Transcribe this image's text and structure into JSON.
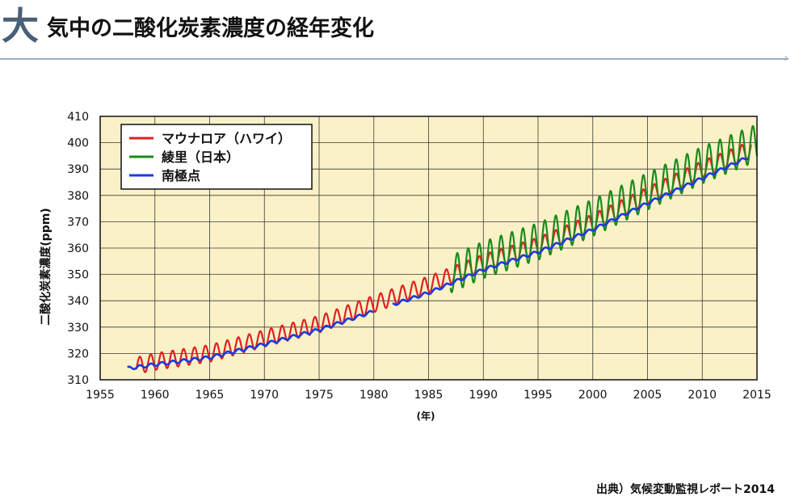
{
  "header": {
    "big_char": "大",
    "title": "気中の二酸化炭素濃度の経年変化"
  },
  "source_text": "出典）気候変動監視レポート2014",
  "colors": {
    "plot_bg": "#fbf1c7",
    "grid": "#3a3a3a",
    "rule": "#9aaebf",
    "mauna_loa": "#e02020",
    "ryori": "#1a8a1a",
    "south_pole": "#1a3ae0"
  },
  "chart_data": {
    "type": "line",
    "title": "",
    "xlabel": "(年)",
    "ylabel": "二酸化炭素濃度(ppm)",
    "xlim": [
      1955,
      2015
    ],
    "ylim": [
      310,
      410
    ],
    "xticks": [
      1955,
      1960,
      1965,
      1970,
      1975,
      1980,
      1985,
      1990,
      1995,
      2000,
      2005,
      2010,
      2015
    ],
    "yticks": [
      310,
      320,
      330,
      340,
      350,
      360,
      370,
      380,
      390,
      400,
      410
    ],
    "grid": true,
    "legend_position": "top-left",
    "series": [
      {
        "name": "マウナロア（ハワイ）",
        "color": "#e02020",
        "x_start": 1958.3,
        "x_end": 2014.5,
        "seasonal_amplitude_ppm": 3.2,
        "trend": [
          [
            1958.3,
            315.3
          ],
          [
            1960,
            316.9
          ],
          [
            1965,
            320.0
          ],
          [
            1970,
            325.7
          ],
          [
            1975,
            331.1
          ],
          [
            1980,
            338.8
          ],
          [
            1985,
            346.1
          ],
          [
            1990,
            354.4
          ],
          [
            1995,
            360.8
          ],
          [
            2000,
            369.7
          ],
          [
            2005,
            379.9
          ],
          [
            2010,
            389.9
          ],
          [
            2014.5,
            397.5
          ]
        ]
      },
      {
        "name": "綾里（日本）",
        "color": "#1a8a1a",
        "x_start": 1987.0,
        "x_end": 2015.0,
        "seasonal_amplitude_ppm": 7.0,
        "trend": [
          [
            1987.0,
            350.0
          ],
          [
            1990,
            355.5
          ],
          [
            1995,
            362.5
          ],
          [
            2000,
            371.5
          ],
          [
            2005,
            381.5
          ],
          [
            2010,
            391.5
          ],
          [
            2015,
            400.0
          ]
        ]
      },
      {
        "name": "南極点",
        "color": "#1a3ae0",
        "x_start": 1957.5,
        "x_end": 2014.2,
        "gap": [
          1980.0,
          1981.7
        ],
        "seasonal_amplitude_ppm": 0.6,
        "trend": [
          [
            1957.5,
            314.3
          ],
          [
            1960,
            315.8
          ],
          [
            1965,
            318.5
          ],
          [
            1970,
            323.5
          ],
          [
            1975,
            329.0
          ],
          [
            1980,
            336.0
          ],
          [
            1981.7,
            338.5
          ],
          [
            1985,
            343.0
          ],
          [
            1990,
            351.8
          ],
          [
            1995,
            358.5
          ],
          [
            2000,
            367.0
          ],
          [
            2005,
            377.0
          ],
          [
            2010,
            386.5
          ],
          [
            2014.2,
            394.5
          ]
        ]
      }
    ]
  }
}
